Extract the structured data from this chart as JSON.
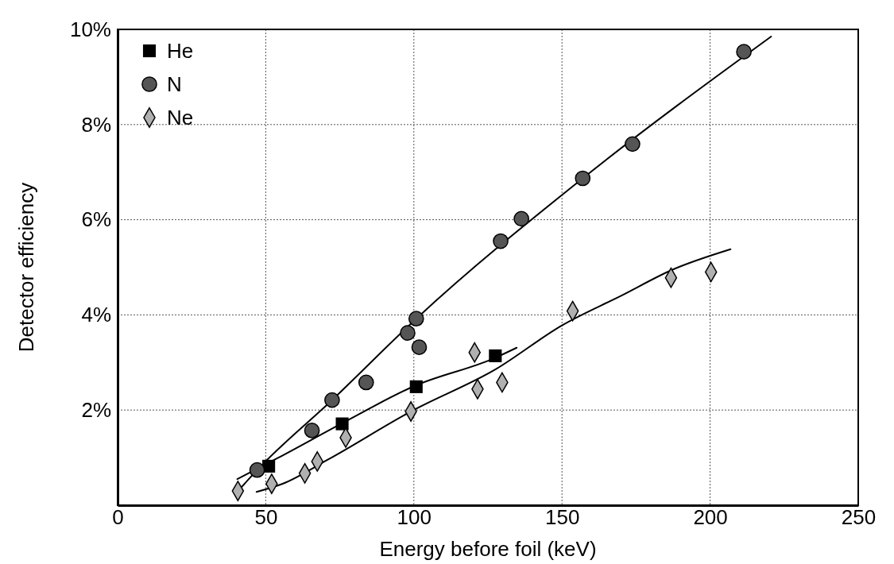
{
  "chart_data": {
    "type": "scatter",
    "xlabel": "Energy before foil (keV)",
    "ylabel": "Detector efficiency",
    "xlim": [
      0,
      250
    ],
    "xticks": [
      0,
      50,
      100,
      150,
      200,
      250
    ],
    "ylim": [
      0,
      10
    ],
    "yticks": [
      {
        "value": 0,
        "label": null
      },
      {
        "value": 2,
        "label": "2%"
      },
      {
        "value": 4,
        "label": "4%"
      },
      {
        "value": 6,
        "label": "6%"
      },
      {
        "value": 8,
        "label": "8%"
      },
      {
        "value": 10,
        "label": "10%"
      }
    ],
    "grid": true,
    "legend": "top left",
    "line_style": "solid",
    "series": [
      {
        "name": "He",
        "color": "#000000",
        "marker": "square",
        "x": [
          51,
          75.8,
          100.8,
          127.5
        ],
        "values": [
          0.82,
          1.71,
          2.49,
          3.14
        ]
      },
      {
        "name": "N",
        "color": "#555555",
        "marker": "circle",
        "x": [
          47.1,
          65.6,
          72.4,
          83.9,
          97.9,
          100.8,
          101.8,
          129.3,
          136.3,
          157,
          173.8,
          211.4
        ],
        "values": [
          0.74,
          1.57,
          2.21,
          2.58,
          3.62,
          3.92,
          3.32,
          5.55,
          6.02,
          6.87,
          7.59,
          9.53
        ]
      },
      {
        "name": "Ne",
        "color": "#b0b0b0",
        "marker": "diamond",
        "x": [
          40.6,
          52,
          63.2,
          67.4,
          77,
          99,
          120.5,
          121.5,
          129.8,
          153.6,
          186.8,
          200.3
        ],
        "values": [
          0.3,
          0.45,
          0.67,
          0.92,
          1.42,
          1.97,
          3.21,
          2.44,
          2.58,
          4.08,
          4.78,
          4.9
        ]
      },
      {
        "type": "line",
        "color": "#000000",
        "x": [
          41.4,
          47.1,
          72.4,
          100.8,
          157,
          220.6
        ],
        "values": [
          0.35,
          0.74,
          2.21,
          3.92,
          6.87,
          9.85
        ]
      },
      {
        "type": "line",
        "color": "#000000",
        "x": [
          40.4,
          54,
          76,
          100,
          127.5,
          134.7
        ],
        "values": [
          0.55,
          0.99,
          1.73,
          2.5,
          3.1,
          3.31
        ]
      },
      {
        "type": "line",
        "color": "#000000",
        "x": [
          46.9,
          55.7,
          71.3,
          99,
          127.7,
          150,
          170.2,
          187.3,
          206.9
        ],
        "values": [
          0.28,
          0.45,
          0.97,
          1.97,
          2.86,
          3.78,
          4.41,
          4.95,
          5.38
        ]
      }
    ]
  }
}
